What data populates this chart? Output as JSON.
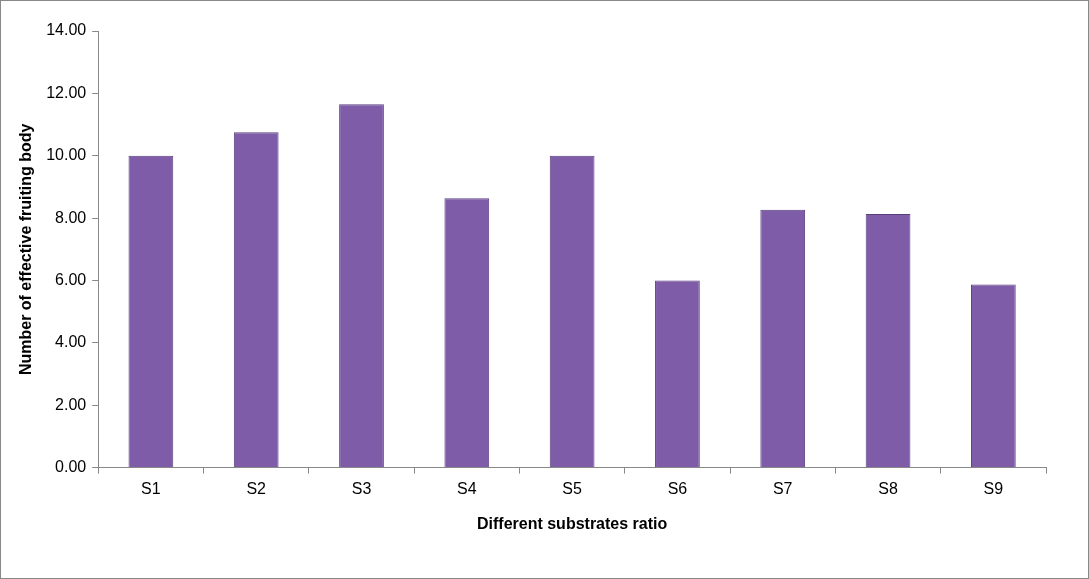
{
  "chart_data": {
    "type": "bar",
    "xlabel": "Different substrates ratio",
    "ylabel": "Number of effective fruiting body",
    "categories": [
      "S1",
      "S2",
      "S3",
      "S4",
      "S5",
      "S6",
      "S7",
      "S8",
      "S9"
    ],
    "values": [
      10.0,
      10.75,
      11.65,
      8.64,
      10.0,
      6.0,
      8.27,
      8.13,
      5.87
    ],
    "color": "#7e5ca8",
    "ylim": [
      0,
      14
    ],
    "yticks": [
      {
        "value": 0,
        "label": "0.00"
      },
      {
        "value": 2,
        "label": "2.00"
      },
      {
        "value": 4,
        "label": "4.00"
      },
      {
        "value": 6,
        "label": "6.00"
      },
      {
        "value": 8,
        "label": "8.00"
      },
      {
        "value": 10,
        "label": "10.00"
      },
      {
        "value": 12,
        "label": "12.00"
      },
      {
        "value": 14,
        "label": "14.00"
      }
    ],
    "grid": false,
    "legend": false
  }
}
